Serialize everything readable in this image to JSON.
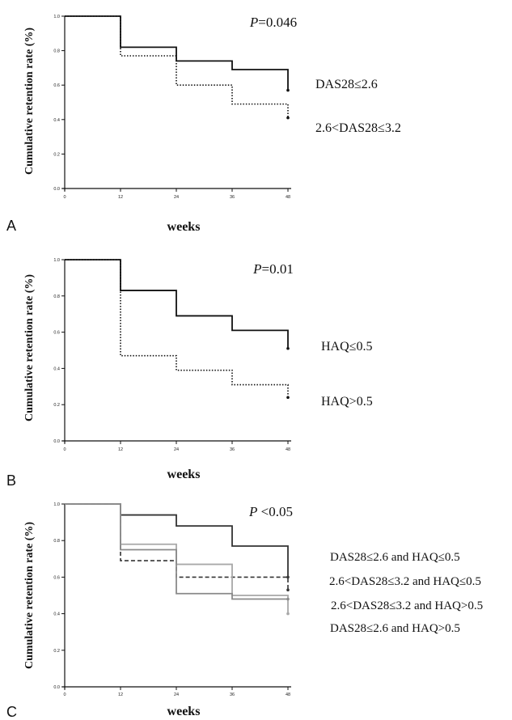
{
  "chart_data": [
    {
      "type": "line",
      "panel_label": "A",
      "annotation": "=0.046",
      "annotation_p": "P",
      "xlabel": "weeks",
      "ylabel": "Cumulative retention rate (%)",
      "xlim": [
        0,
        48
      ],
      "ylim": [
        0,
        1
      ],
      "x_ticks": [
        "0",
        "12",
        "24",
        "36",
        "48"
      ],
      "y_ticks": [
        "0.0",
        "0.2",
        "0.4",
        "0.6",
        "0.8",
        "1.0"
      ],
      "series": [
        {
          "name": "DAS28≤2.6",
          "style": "solid",
          "x": [
            0,
            12,
            24,
            36,
            48
          ],
          "y": [
            1.0,
            0.82,
            0.74,
            0.69,
            0.57
          ]
        },
        {
          "name": "2.6<DAS28≤3.2",
          "style": "dotted",
          "x": [
            0,
            12,
            24,
            36,
            48
          ],
          "y": [
            1.0,
            0.77,
            0.6,
            0.49,
            0.41
          ]
        }
      ]
    },
    {
      "type": "line",
      "panel_label": "B",
      "annotation": "=0.01",
      "annotation_p": "P",
      "xlabel": "weeks",
      "ylabel": "Cumulative retention rate (%)",
      "xlim": [
        0,
        48
      ],
      "ylim": [
        0,
        1
      ],
      "x_ticks": [
        "0",
        "12",
        "24",
        "36",
        "48"
      ],
      "y_ticks": [
        "0.0",
        "0.2",
        "0.4",
        "0.6",
        "0.8",
        "1.0"
      ],
      "series": [
        {
          "name": "HAQ≤0.5",
          "style": "solid",
          "x": [
            0,
            12,
            24,
            36,
            48
          ],
          "y": [
            1.0,
            0.83,
            0.69,
            0.61,
            0.51
          ]
        },
        {
          "name": "HAQ>0.5",
          "style": "dotted",
          "x": [
            0,
            12,
            24,
            36,
            48
          ],
          "y": [
            1.0,
            0.47,
            0.39,
            0.31,
            0.24
          ]
        }
      ]
    },
    {
      "type": "line",
      "panel_label": "C",
      "annotation": " <0.05",
      "annotation_p": "P",
      "xlabel": "weeks",
      "ylabel": "Cumulative retention rate (%)",
      "xlim": [
        0,
        48
      ],
      "ylim": [
        0,
        1
      ],
      "x_ticks": [
        "0",
        "12",
        "24",
        "36",
        "48"
      ],
      "y_ticks": [
        "0.0",
        "0.2",
        "0.4",
        "0.6",
        "0.8",
        "1.0"
      ],
      "series": [
        {
          "name": "DAS28≤2.6 and HAQ≤0.5",
          "style": "solid",
          "color": "#333333",
          "x": [
            0,
            12,
            24,
            36,
            48
          ],
          "y": [
            1.0,
            0.94,
            0.88,
            0.77,
            0.6
          ]
        },
        {
          "name": "2.6<DAS28≤3.2 and HAQ≤0.5",
          "style": "dashed",
          "color": "#333333",
          "x": [
            0,
            12,
            24,
            36,
            48
          ],
          "y": [
            1.0,
            0.69,
            0.6,
            0.6,
            0.53
          ]
        },
        {
          "name": "2.6<DAS28≤3.2 and HAQ>0.5",
          "style": "solid",
          "color": "#a8a8a8",
          "x": [
            0,
            12,
            24,
            36,
            48
          ],
          "y": [
            1.0,
            0.78,
            0.67,
            0.5,
            0.4
          ]
        },
        {
          "name": "DAS28≤2.6 and HAQ>0.5",
          "style": "solid",
          "color": "#8a8a8a",
          "x": [
            0,
            12,
            24,
            36,
            48
          ],
          "y": [
            1.0,
            0.75,
            0.51,
            0.48,
            0.48
          ]
        }
      ]
    }
  ]
}
